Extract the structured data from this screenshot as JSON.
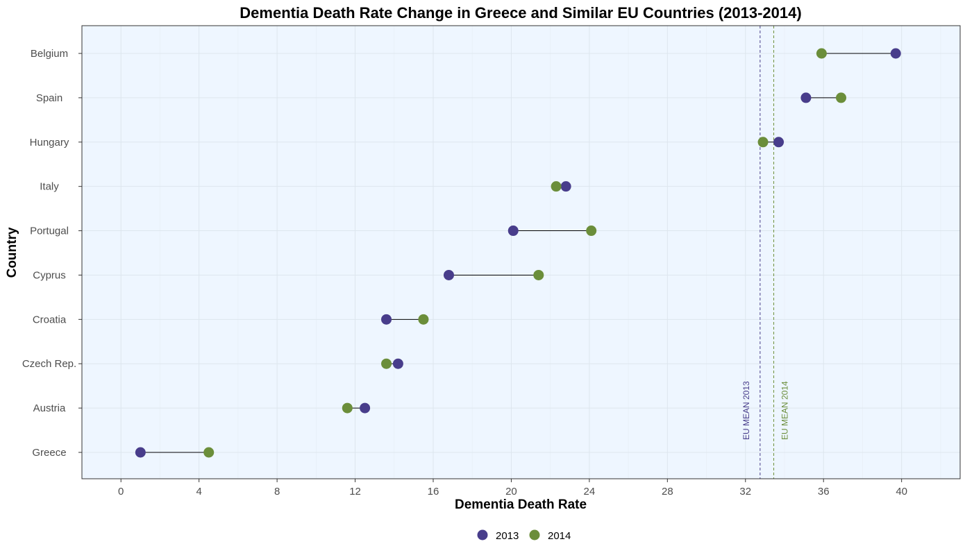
{
  "chart_data": {
    "type": "dumbbell",
    "title": "Dementia Death Rate Change in Greece and Similar EU Countries (2013-2014)",
    "xlabel": "Dementia Death Rate",
    "ylabel": "Country",
    "xlim": [
      -2,
      43
    ],
    "x_ticks": [
      0,
      4,
      8,
      12,
      16,
      20,
      24,
      28,
      32,
      36,
      40
    ],
    "categories": [
      "Belgium",
      "Spain",
      "Hungary",
      "Italy",
      "Portugal",
      "Cyprus",
      "Croatia",
      "Czech Rep.",
      "Austria",
      "Greece"
    ],
    "series": [
      {
        "name": "2013",
        "color": "#483D8B",
        "values": [
          39.7,
          35.1,
          33.7,
          22.8,
          20.1,
          16.8,
          13.6,
          14.2,
          12.5,
          1.0
        ]
      },
      {
        "name": "2014",
        "color": "#6B8E3A",
        "values": [
          35.9,
          36.9,
          32.9,
          22.3,
          24.1,
          21.4,
          15.5,
          13.6,
          11.6,
          4.5
        ]
      }
    ],
    "reference_lines": [
      {
        "label": "EU MEAN 2013",
        "value": 32.75,
        "color": "#483D8B"
      },
      {
        "label": "EU MEAN 2014",
        "value": 33.45,
        "color": "#6B8E3A"
      }
    ],
    "legend": {
      "position": "bottom",
      "items": [
        "2013",
        "2014"
      ]
    },
    "grid": true,
    "panel_background": "#EEF6FF"
  }
}
